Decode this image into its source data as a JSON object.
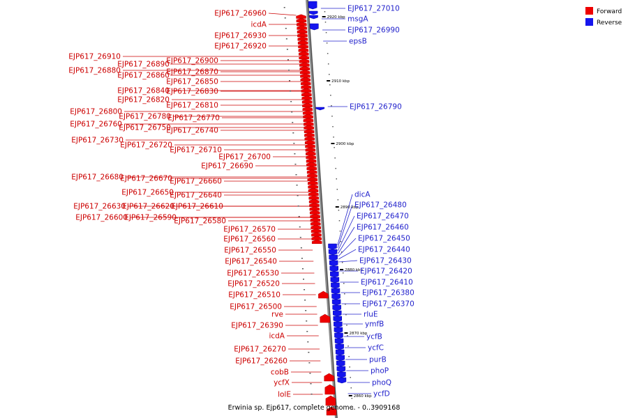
{
  "caption": "Erwinia sp. Ejp617, complete genome. - 0..3909168",
  "legend": [
    {
      "label": "Forward",
      "color": "#ee0000"
    },
    {
      "label": "Reverse",
      "color": "#1515ee"
    }
  ],
  "ticks": [
    "2920 kbp",
    "2910 kbp",
    "2900 kbp",
    "2890 kbp",
    "2880 kbp",
    "2870 kbp",
    "2860 kbp"
  ],
  "forward_labels": [
    "EJP617_26960",
    "icdA",
    "EJP617_26930",
    "EJP617_26920",
    "EJP617_26910",
    "EJP617_26900",
    "EJP617_26890",
    "EJP617_26880",
    "EJP617_26870",
    "EJP617_26860",
    "EJP617_26850",
    "EJP617_26840",
    "EJP617_26830",
    "EJP617_26820",
    "EJP617_26810",
    "EJP617_26800",
    "EJP617_26780",
    "EJP617_26770",
    "EJP617_26760",
    "EJP617_26750",
    "EJP617_26740",
    "EJP617_26730",
    "EJP617_26720",
    "EJP617_26710",
    "EJP617_26700",
    "EJP617_26690",
    "EJP617_26680",
    "EJP617_26670",
    "EJP617_26660",
    "EJP617_26650",
    "EJP617_26640",
    "EJP617_26630",
    "EJP617_26620",
    "EJP617_26610",
    "EJP617_26600",
    "EJP617_26590",
    "EJP617_26580",
    "EJP617_26570",
    "EJP617_26560",
    "EJP617_26550",
    "EJP617_26540",
    "EJP617_26530",
    "EJP617_26520",
    "EJP617_26510",
    "EJP617_26500",
    "rve",
    "EJP617_26390",
    "icdA",
    "EJP617_26270",
    "EJP617_26260",
    "cobB",
    "ycfX",
    "lolE"
  ],
  "reverse_labels": [
    "EJP617_27010",
    "msgA",
    "EJP617_26990",
    "epsB",
    "EJP617_26790",
    "dicA",
    "EJP617_26480",
    "EJP617_26470",
    "EJP617_26460",
    "EJP617_26450",
    "EJP617_26440",
    "EJP617_26430",
    "EJP617_26420",
    "EJP617_26410",
    "EJP617_26380",
    "EJP617_26370",
    "rluE",
    "ymfB",
    "ycfB",
    "ycfC",
    "purB",
    "phoP",
    "phoQ",
    "ycfD"
  ]
}
